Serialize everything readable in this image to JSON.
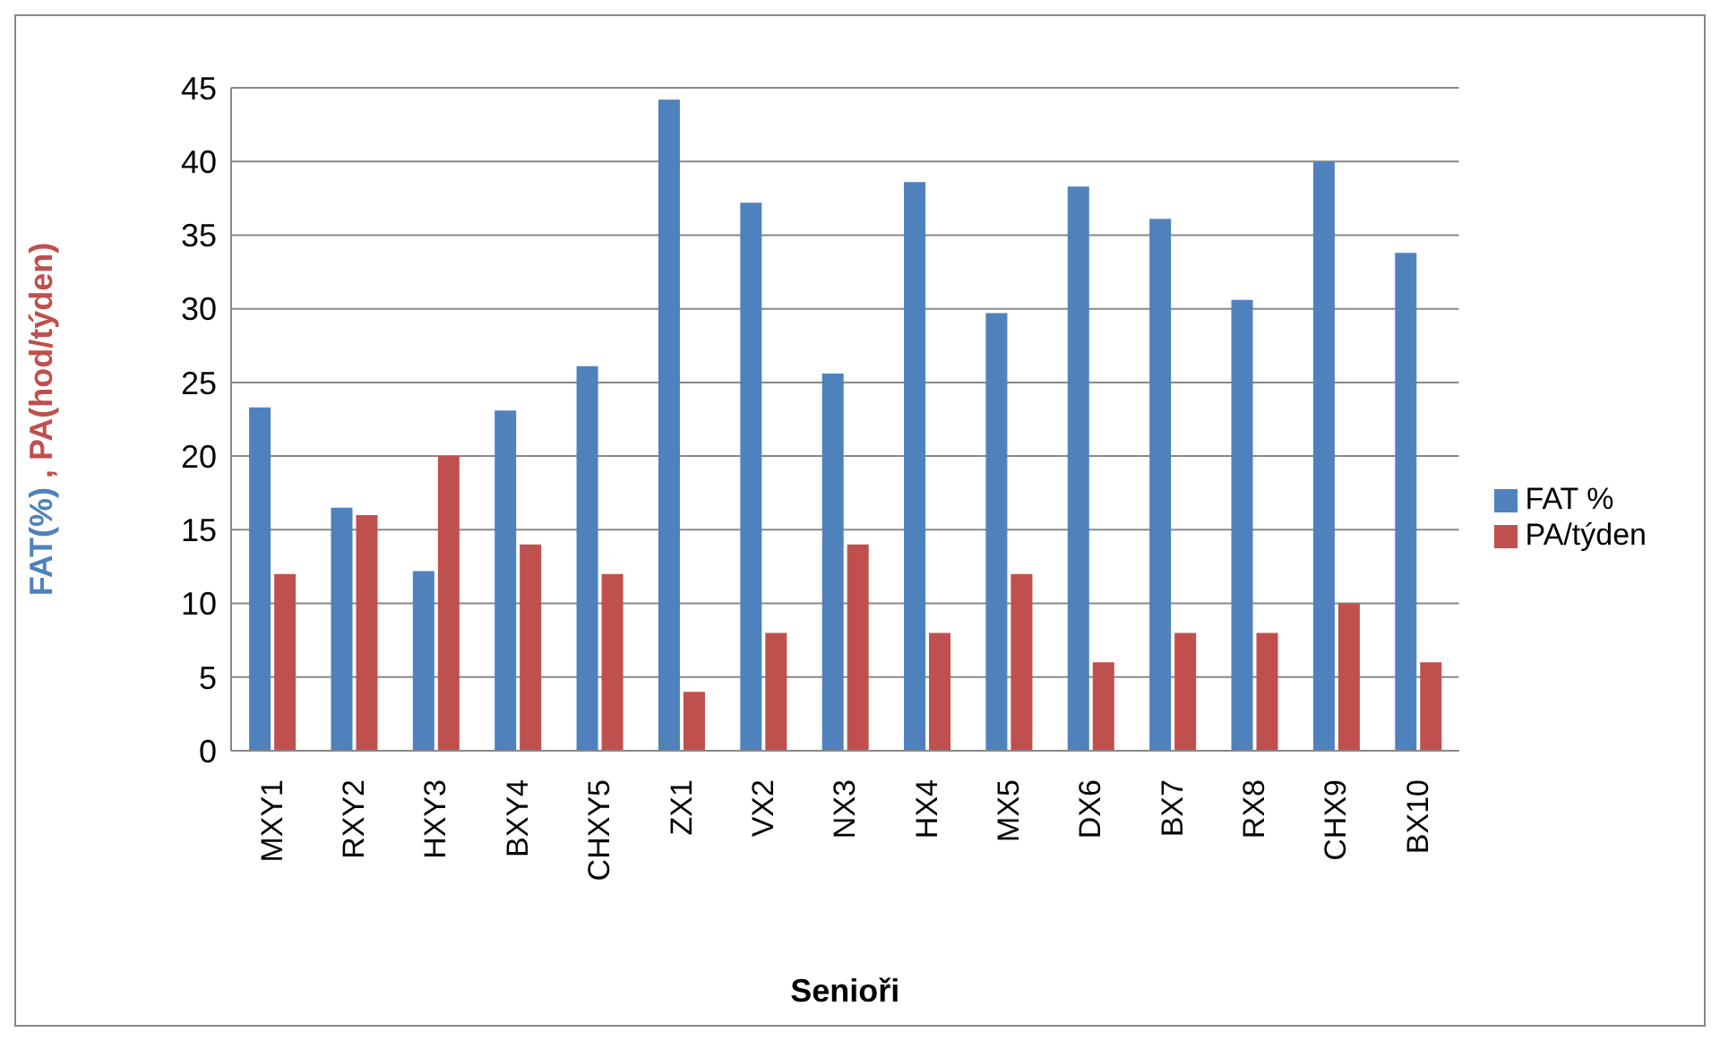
{
  "chart_data": {
    "type": "bar",
    "xlabel": "Senioři",
    "ylabel": "FAT(%) , PA(hod/týden)",
    "categories": [
      "MXY1",
      "RXY2",
      "HXY3",
      "BXY4",
      "CHXY5",
      "ZX1",
      "VX2",
      "NX3",
      "HX4",
      "MX5",
      "DX6",
      "BX7",
      "RX8",
      "CHX9",
      "BX10"
    ],
    "series": [
      {
        "name": "FAT %",
        "color": "#4f81bd",
        "values": [
          23.3,
          16.5,
          12.2,
          23.1,
          26.1,
          44.2,
          37.2,
          25.6,
          38.6,
          29.7,
          38.3,
          36.1,
          30.6,
          40,
          33.8
        ]
      },
      {
        "name": "PA/týden",
        "color": "#c0504d",
        "values": [
          12,
          16,
          20,
          14,
          12,
          4,
          8,
          14,
          8,
          12,
          6,
          8,
          8,
          10,
          6
        ]
      }
    ],
    "ylim": [
      0,
      45
    ],
    "yticks": [
      0,
      5,
      10,
      15,
      20,
      25,
      30,
      35,
      40,
      45
    ],
    "grid": "y",
    "legend": "right"
  }
}
